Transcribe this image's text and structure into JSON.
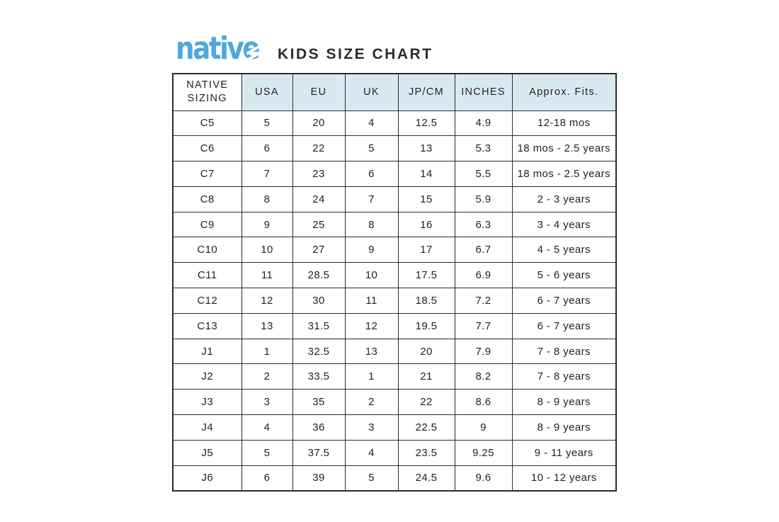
{
  "brand": {
    "logo_text": "native",
    "logo_color": "#4FA8DD",
    "title": "KIDS SIZE CHART"
  },
  "size_chart": {
    "header_bg": "#D9E9F2",
    "border_color": "#2B2B2B",
    "text_color": "#231F20",
    "columns": [
      "NATIVE SIZING",
      "USA",
      "EU",
      "UK",
      "JP/CM",
      "INCHES",
      "Approx. Fits."
    ],
    "rows": [
      [
        "C5",
        "5",
        "20",
        "4",
        "12.5",
        "4.9",
        "12-18 mos"
      ],
      [
        "C6",
        "6",
        "22",
        "5",
        "13",
        "5.3",
        "18 mos - 2.5 years"
      ],
      [
        "C7",
        "7",
        "23",
        "6",
        "14",
        "5.5",
        "18 mos - 2.5 years"
      ],
      [
        "C8",
        "8",
        "24",
        "7",
        "15",
        "5.9",
        "2 - 3 years"
      ],
      [
        "C9",
        "9",
        "25",
        "8",
        "16",
        "6.3",
        "3 - 4 years"
      ],
      [
        "C10",
        "10",
        "27",
        "9",
        "17",
        "6.7",
        "4 - 5 years"
      ],
      [
        "C11",
        "11",
        "28.5",
        "10",
        "17.5",
        "6.9",
        "5 - 6 years"
      ],
      [
        "C12",
        "12",
        "30",
        "11",
        "18.5",
        "7.2",
        "6 - 7 years"
      ],
      [
        "C13",
        "13",
        "31.5",
        "12",
        "19.5",
        "7.7",
        "6 - 7 years"
      ],
      [
        "J1",
        "1",
        "32.5",
        "13",
        "20",
        "7.9",
        "7 - 8 years"
      ],
      [
        "J2",
        "2",
        "33.5",
        "1",
        "21",
        "8.2",
        "7 - 8 years"
      ],
      [
        "J3",
        "3",
        "35",
        "2",
        "22",
        "8.6",
        "8 - 9 years"
      ],
      [
        "J4",
        "4",
        "36",
        "3",
        "22.5",
        "9",
        "8 - 9 years"
      ],
      [
        "J5",
        "5",
        "37.5",
        "4",
        "23.5",
        "9.25",
        "9 - 11 years"
      ],
      [
        "J6",
        "6",
        "39",
        "5",
        "24.5",
        "9.6",
        "10 - 12 years"
      ]
    ]
  }
}
